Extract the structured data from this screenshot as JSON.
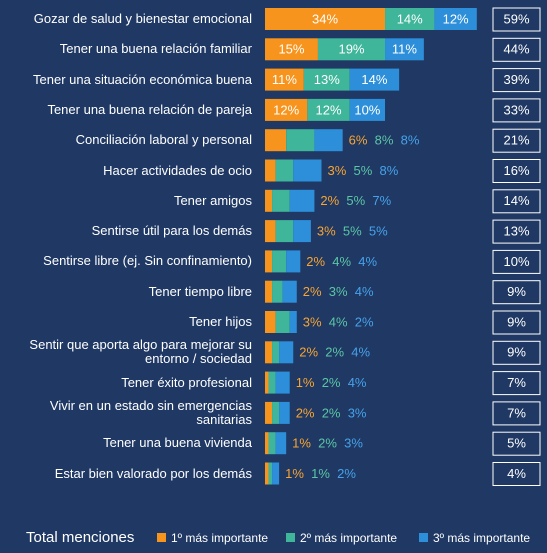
{
  "chart_data": {
    "type": "stacked-bar-horizontal",
    "categories": [
      "Gozar de salud y bienestar emocional",
      "Tener una buena relación familiar",
      "Tener una situación económica buena",
      "Tener una buena relación de pareja",
      "Conciliación laboral y personal",
      "Hacer actividades de ocio",
      "Tener amigos",
      "Sentirse útil para los demás",
      "Sentirse libre (ej. Sin confinamiento)",
      "Tener tiempo libre",
      "Tener hijos",
      "Sentir que aporta algo para mejorar su\nentorno / sociedad",
      "Tener éxito profesional",
      "Vivir en un estado sin emergencias\nsanitarias",
      "Tener una buena vivienda",
      "Estar bien valorado por los demás"
    ],
    "series": [
      {
        "name": "1º más importante",
        "color": "#f7941d",
        "label_color": "#f9a531",
        "values": [
          34,
          15,
          11,
          12,
          6,
          3,
          2,
          3,
          2,
          2,
          3,
          2,
          1,
          2,
          1,
          1
        ],
        "value_labels": [
          "34%",
          "15%",
          "11%",
          "12%",
          "6%",
          "3%",
          "2%",
          "3%",
          "2%",
          "2%",
          "3%",
          "2%",
          "1%",
          "2%",
          "1%",
          "1%"
        ]
      },
      {
        "name": "2º más importante",
        "color": "#3fb59a",
        "label_color": "#5cc6a6",
        "values": [
          14,
          19,
          13,
          12,
          8,
          5,
          5,
          5,
          4,
          3,
          4,
          2,
          2,
          2,
          2,
          1
        ],
        "value_labels": [
          "14%",
          "19%",
          "13%",
          "12%",
          "8%",
          "5%",
          "5%",
          "5%",
          "4%",
          "3%",
          "4%",
          "2%",
          "2%",
          "2%",
          "2%",
          "1%"
        ]
      },
      {
        "name": "3º más importante",
        "color": "#2d8fd9",
        "label_color": "#46a2ea",
        "values": [
          12,
          11,
          14,
          10,
          8,
          8,
          7,
          5,
          4,
          4,
          2,
          4,
          4,
          3,
          3,
          2
        ],
        "value_labels": [
          "12%",
          "11%",
          "14%",
          "10%",
          "8%",
          "8%",
          "7%",
          "5%",
          "4%",
          "4%",
          "2%",
          "4%",
          "4%",
          "3%",
          "3%",
          "2%"
        ]
      }
    ],
    "totals": [
      "59%",
      "44%",
      "39%",
      "33%",
      "21%",
      "16%",
      "14%",
      "13%",
      "10%",
      "9%",
      "9%",
      "9%",
      "7%",
      "7%",
      "5%",
      "4%"
    ],
    "legend_title": "Total menciones"
  }
}
